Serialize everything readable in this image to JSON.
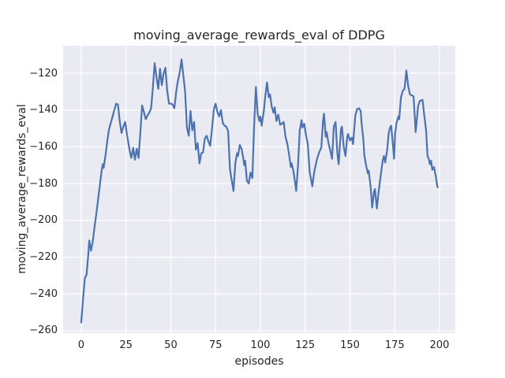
{
  "figure": {
    "title": "moving_average_rewards_eval of DDPG",
    "xlabel": "episodes",
    "ylabel": "moving_average_rewards_eval"
  },
  "chart_data": {
    "type": "line",
    "title": "moving_average_rewards_eval of DDPG",
    "xlabel": "episodes",
    "ylabel": "moving_average_rewards_eval",
    "grid": true,
    "legend": false,
    "plot_bg": "#EAEAF2",
    "grid_color": "#FFFFFF",
    "text_color": "#262626",
    "xlim": [
      -10.1,
      208.8
    ],
    "ylim": [
      -261.3,
      -105.0
    ],
    "x_ticks": [
      0,
      25,
      50,
      75,
      100,
      125,
      150,
      175,
      200
    ],
    "x_tick_labels": [
      "0",
      "25",
      "50",
      "75",
      "100",
      "125",
      "150",
      "175",
      "200"
    ],
    "y_ticks": [
      -120,
      -140,
      -160,
      -180,
      -200,
      -220,
      -240,
      -260
    ],
    "y_tick_labels": [
      "−120",
      "−140",
      "−160",
      "−180",
      "−200",
      "−220",
      "−240",
      "−260"
    ],
    "series": [
      {
        "name": "moving_average_rewards_eval",
        "color": "#4C72B0",
        "line_width": 2.2,
        "points": [
          [
            0,
            -255.5
          ],
          [
            1,
            -243
          ],
          [
            2,
            -231.5
          ],
          [
            3,
            -229.5
          ],
          [
            4,
            -218
          ],
          [
            4.5,
            -211
          ],
          [
            5.5,
            -216.5
          ],
          [
            6.5,
            -211
          ],
          [
            7.5,
            -203
          ],
          [
            8.5,
            -196
          ],
          [
            9.5,
            -188
          ],
          [
            10.5,
            -180
          ],
          [
            11.5,
            -172.5
          ],
          [
            12,
            -169.5
          ],
          [
            12.5,
            -171.5
          ],
          [
            13.5,
            -165
          ],
          [
            14.5,
            -157
          ],
          [
            15.5,
            -150.5
          ],
          [
            16.5,
            -147
          ],
          [
            17.5,
            -143.5
          ],
          [
            18.5,
            -140
          ],
          [
            19.5,
            -136.5
          ],
          [
            20.5,
            -137
          ],
          [
            21.5,
            -146
          ],
          [
            22.5,
            -152.5
          ],
          [
            23.5,
            -149
          ],
          [
            24.5,
            -146.5
          ],
          [
            25.5,
            -153
          ],
          [
            26.5,
            -159
          ],
          [
            27.5,
            -164.5
          ],
          [
            28,
            -166
          ],
          [
            29,
            -160.5
          ],
          [
            30,
            -167
          ],
          [
            31,
            -161
          ],
          [
            32,
            -166
          ],
          [
            33,
            -152
          ],
          [
            34,
            -137.5
          ],
          [
            35,
            -141
          ],
          [
            36,
            -145
          ],
          [
            37,
            -143
          ],
          [
            38,
            -141.5
          ],
          [
            39,
            -139
          ],
          [
            40,
            -128
          ],
          [
            41,
            -114.5
          ],
          [
            42,
            -122
          ],
          [
            43,
            -128.5
          ],
          [
            44,
            -117.5
          ],
          [
            45,
            -126.5
          ],
          [
            46,
            -120
          ],
          [
            47,
            -117
          ],
          [
            48,
            -129.5
          ],
          [
            49,
            -136.5
          ],
          [
            50,
            -136.5
          ],
          [
            51,
            -137
          ],
          [
            52,
            -139
          ],
          [
            53,
            -130
          ],
          [
            54,
            -124
          ],
          [
            55,
            -119.5
          ],
          [
            56,
            -112.5
          ],
          [
            57,
            -121
          ],
          [
            58,
            -130
          ],
          [
            59,
            -149.5
          ],
          [
            60,
            -154
          ],
          [
            61,
            -140.5
          ],
          [
            62,
            -151
          ],
          [
            63,
            -146.5
          ],
          [
            64,
            -161.5
          ],
          [
            65,
            -158
          ],
          [
            66,
            -169
          ],
          [
            67,
            -163.5
          ],
          [
            68,
            -163
          ],
          [
            69,
            -155.5
          ],
          [
            70,
            -154
          ],
          [
            71,
            -157
          ],
          [
            72,
            -159.5
          ],
          [
            73,
            -150
          ],
          [
            74,
            -140
          ],
          [
            75,
            -136.5
          ],
          [
            76,
            -141
          ],
          [
            77,
            -143.5
          ],
          [
            78,
            -140
          ],
          [
            79,
            -147
          ],
          [
            80,
            -148.5
          ],
          [
            81,
            -149
          ],
          [
            82,
            -151.5
          ],
          [
            83,
            -172
          ],
          [
            84,
            -178
          ],
          [
            85,
            -184
          ],
          [
            86,
            -169
          ],
          [
            87,
            -163.5
          ],
          [
            87.5,
            -165
          ],
          [
            88.5,
            -159
          ],
          [
            89.5,
            -161
          ],
          [
            90.5,
            -166.5
          ],
          [
            91,
            -170
          ],
          [
            91.5,
            -167.5
          ],
          [
            92.5,
            -178.5
          ],
          [
            93.5,
            -180
          ],
          [
            94.5,
            -174
          ],
          [
            95.5,
            -177
          ],
          [
            96.5,
            -149
          ],
          [
            97.5,
            -127.5
          ],
          [
            98.5,
            -142.5
          ],
          [
            99.5,
            -146
          ],
          [
            100,
            -143.5
          ],
          [
            100.7,
            -148.5
          ],
          [
            102,
            -140
          ],
          [
            102.6,
            -133.5
          ],
          [
            103.7,
            -125
          ],
          [
            104.7,
            -133
          ],
          [
            105.4,
            -131.5
          ],
          [
            106.3,
            -138
          ],
          [
            107.3,
            -141.5
          ],
          [
            108,
            -138.5
          ],
          [
            109,
            -146
          ],
          [
            110,
            -142.5
          ],
          [
            111,
            -148
          ],
          [
            112,
            -147.5
          ],
          [
            113,
            -146.5
          ],
          [
            114,
            -154.5
          ],
          [
            115,
            -158
          ],
          [
            116,
            -164
          ],
          [
            117,
            -171
          ],
          [
            117.5,
            -169
          ],
          [
            118.5,
            -173.5
          ],
          [
            120,
            -184
          ],
          [
            121,
            -170
          ],
          [
            122,
            -151
          ],
          [
            123,
            -145.5
          ],
          [
            123.5,
            -149.5
          ],
          [
            124.5,
            -147.5
          ],
          [
            125.5,
            -154
          ],
          [
            126.5,
            -158.5
          ],
          [
            127.5,
            -173.5
          ],
          [
            129,
            -181.5
          ],
          [
            130,
            -174
          ],
          [
            131.5,
            -167
          ],
          [
            133,
            -162.5
          ],
          [
            134,
            -160.5
          ],
          [
            135,
            -146
          ],
          [
            135.5,
            -142
          ],
          [
            136.5,
            -154.5
          ],
          [
            137,
            -152
          ],
          [
            138,
            -158
          ],
          [
            139,
            -162
          ],
          [
            140,
            -166.5
          ],
          [
            141,
            -149
          ],
          [
            142,
            -146.5
          ],
          [
            143,
            -164
          ],
          [
            143.7,
            -169.5
          ],
          [
            145,
            -150.5
          ],
          [
            145.5,
            -149
          ],
          [
            146.5,
            -160
          ],
          [
            147.5,
            -165
          ],
          [
            148.5,
            -154.5
          ],
          [
            149,
            -153
          ],
          [
            150,
            -156.5
          ],
          [
            151,
            -155
          ],
          [
            151.7,
            -158.5
          ],
          [
            153,
            -143
          ],
          [
            154,
            -139.5
          ],
          [
            155,
            -139
          ],
          [
            156,
            -140.5
          ],
          [
            156.5,
            -147.5
          ],
          [
            157.5,
            -156
          ],
          [
            158,
            -164.5
          ],
          [
            159,
            -170
          ],
          [
            160,
            -174.5
          ],
          [
            160.5,
            -173
          ],
          [
            161.5,
            -181.5
          ],
          [
            162.4,
            -193
          ],
          [
            163.4,
            -184.5
          ],
          [
            163.9,
            -183
          ],
          [
            165,
            -193.5
          ],
          [
            166,
            -184.5
          ],
          [
            167.3,
            -174.5
          ],
          [
            168.3,
            -167.5
          ],
          [
            169,
            -165
          ],
          [
            169.7,
            -168.5
          ],
          [
            170.8,
            -161.5
          ],
          [
            171.6,
            -153
          ],
          [
            172.2,
            -150
          ],
          [
            173,
            -148.5
          ],
          [
            174,
            -159
          ],
          [
            174.6,
            -166.5
          ],
          [
            175.2,
            -153
          ],
          [
            176,
            -147
          ],
          [
            177,
            -143.5
          ],
          [
            177.5,
            -145
          ],
          [
            178.5,
            -133
          ],
          [
            179.5,
            -129.5
          ],
          [
            180.5,
            -128.5
          ],
          [
            181.5,
            -118.5
          ],
          [
            182.5,
            -127
          ],
          [
            183.5,
            -131.5
          ],
          [
            184.5,
            -132
          ],
          [
            185.5,
            -132.5
          ],
          [
            186.7,
            -152
          ],
          [
            188,
            -138
          ],
          [
            189,
            -135
          ],
          [
            190.5,
            -134.5
          ],
          [
            191.5,
            -143
          ],
          [
            192.5,
            -151
          ],
          [
            193.3,
            -165
          ],
          [
            194,
            -166.5
          ],
          [
            194.6,
            -169.5
          ],
          [
            195.3,
            -167.5
          ],
          [
            196,
            -172.5
          ],
          [
            196.9,
            -171
          ],
          [
            198,
            -176.5
          ],
          [
            198.6,
            -180.5
          ],
          [
            199,
            -182
          ]
        ]
      }
    ]
  }
}
